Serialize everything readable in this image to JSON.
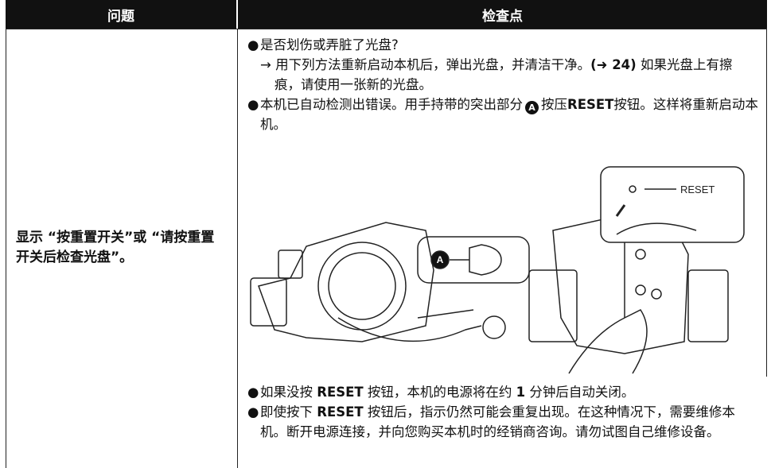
{
  "table": {
    "columns": [
      "问题",
      "检查点"
    ],
    "problem": "显示 “按重置开关”或 “请按重置开关后检查光盘”。",
    "checks": [
      {
        "parts": [
          "是否划伤或弄脏了光盘?"
        ]
      },
      {
        "parts": [
          "→",
          "用下列方法重新启动本机后，弹出光盘，并清洁干净。",
          "(➜ 24)",
          "如果光盘上有擦痕，请使用一张新的光盘。"
        ]
      },
      {
        "parts": [
          "本机已自动检测出错误。用手持带的突出部分",
          "A",
          "按压",
          "RESET",
          "按钮。这样将重新启动本机。"
        ]
      },
      {
        "parts": [
          "如果没按",
          "RESET",
          "按钮，本机的电源将在约",
          "1",
          "分钟后自动关闭。"
        ]
      },
      {
        "parts": [
          "即使按下",
          "RESET",
          "按钮后，指示仍然可能会重复出现。在这种情况下，需要维修本机。断开电源连接，并向您购买本机时的经销商咨询。请勿试图自己维修设备。"
        ]
      }
    ],
    "figure": {
      "callout": "A",
      "button_label": "RESET"
    }
  }
}
